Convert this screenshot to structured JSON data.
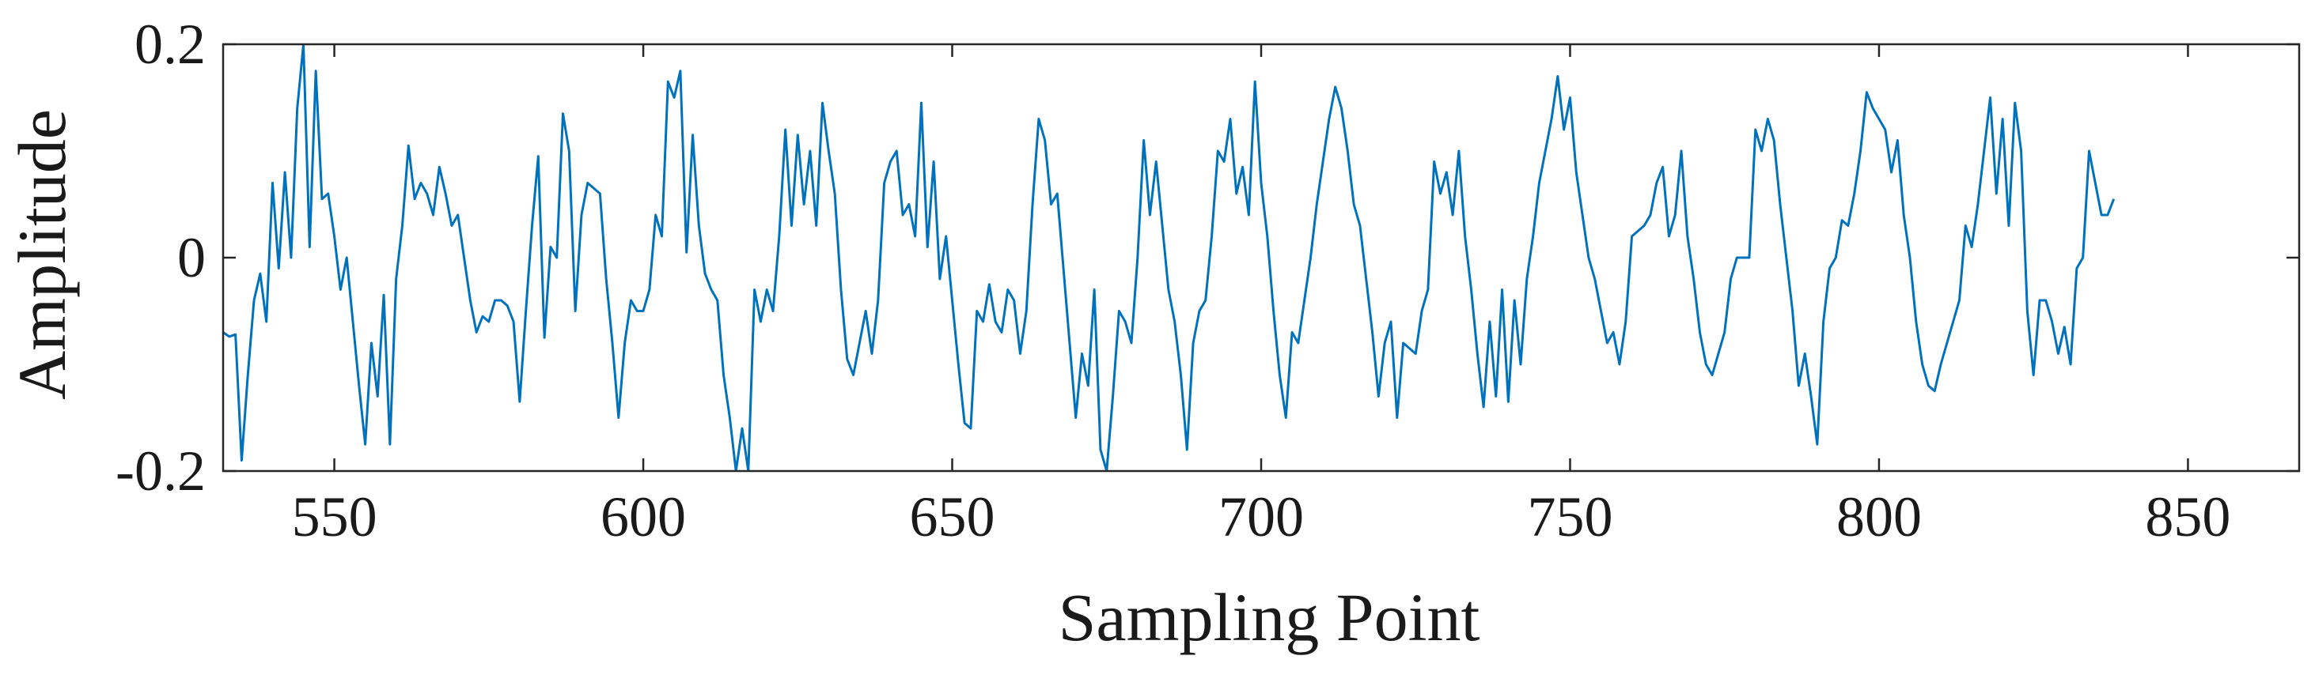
{
  "chart_data": {
    "type": "line",
    "title": "",
    "xlabel": "Sampling Point",
    "ylabel": "Amplitude",
    "xlim": [
      532,
      868
    ],
    "ylim": [
      -0.2,
      0.2
    ],
    "x_ticks": [
      550,
      600,
      650,
      700,
      750,
      800,
      850
    ],
    "y_ticks": [
      -0.2,
      0,
      0.2
    ],
    "x_tick_labels": [
      "550",
      "600",
      "650",
      "700",
      "750",
      "800",
      "850"
    ],
    "y_tick_labels": [
      "-0.2",
      "0",
      "0.2"
    ],
    "grid": false,
    "legend": "none",
    "series": [
      {
        "color": "#0072BD",
        "x_start": 532,
        "x_step": 1,
        "values": [
          -0.07,
          -0.074,
          -0.072,
          -0.19,
          -0.11,
          -0.04,
          -0.015,
          -0.06,
          0.07,
          -0.01,
          0.08,
          0.0,
          0.14,
          0.2,
          0.01,
          0.175,
          0.055,
          0.06,
          0.02,
          -0.03,
          0.0,
          -0.06,
          -0.12,
          -0.175,
          -0.08,
          -0.13,
          -0.035,
          -0.175,
          -0.02,
          0.03,
          0.105,
          0.055,
          0.07,
          0.06,
          0.04,
          0.085,
          0.06,
          0.03,
          0.04,
          0.0,
          -0.04,
          -0.07,
          -0.055,
          -0.06,
          -0.04,
          -0.04,
          -0.045,
          -0.06,
          -0.135,
          -0.05,
          0.03,
          0.095,
          -0.075,
          0.01,
          0.0,
          0.135,
          0.1,
          -0.05,
          0.04,
          0.07,
          0.065,
          0.06,
          -0.02,
          -0.08,
          -0.15,
          -0.08,
          -0.04,
          -0.05,
          -0.05,
          -0.03,
          0.04,
          0.02,
          0.165,
          0.15,
          0.175,
          0.005,
          0.115,
          0.03,
          -0.015,
          -0.03,
          -0.04,
          -0.11,
          -0.15,
          -0.2,
          -0.16,
          -0.2,
          -0.03,
          -0.06,
          -0.03,
          -0.05,
          0.02,
          0.12,
          0.03,
          0.115,
          0.05,
          0.1,
          0.03,
          0.145,
          0.1,
          0.06,
          -0.03,
          -0.095,
          -0.11,
          -0.08,
          -0.05,
          -0.09,
          -0.04,
          0.07,
          0.09,
          0.1,
          0.04,
          0.05,
          0.02,
          0.145,
          0.01,
          0.09,
          -0.02,
          0.02,
          -0.04,
          -0.1,
          -0.155,
          -0.16,
          -0.05,
          -0.06,
          -0.025,
          -0.06,
          -0.07,
          -0.03,
          -0.04,
          -0.09,
          -0.05,
          0.05,
          0.13,
          0.11,
          0.05,
          0.06,
          -0.01,
          -0.08,
          -0.15,
          -0.09,
          -0.12,
          -0.03,
          -0.18,
          -0.2,
          -0.13,
          -0.05,
          -0.06,
          -0.08,
          0.0,
          0.11,
          0.04,
          0.09,
          0.03,
          -0.03,
          -0.06,
          -0.11,
          -0.18,
          -0.08,
          -0.05,
          -0.04,
          0.02,
          0.1,
          0.09,
          0.13,
          0.06,
          0.085,
          0.04,
          0.165,
          0.07,
          0.02,
          -0.05,
          -0.11,
          -0.15,
          -0.07,
          -0.08,
          -0.04,
          0.0,
          0.05,
          0.09,
          0.13,
          0.16,
          0.14,
          0.1,
          0.05,
          0.03,
          -0.02,
          -0.07,
          -0.13,
          -0.08,
          -0.06,
          -0.15,
          -0.08,
          -0.085,
          -0.09,
          -0.05,
          -0.03,
          0.09,
          0.06,
          0.08,
          0.04,
          0.1,
          0.02,
          -0.03,
          -0.09,
          -0.14,
          -0.06,
          -0.13,
          -0.03,
          -0.135,
          -0.04,
          -0.1,
          -0.02,
          0.02,
          0.07,
          0.1,
          0.13,
          0.17,
          0.12,
          0.15,
          0.08,
          0.04,
          0.0,
          -0.02,
          -0.05,
          -0.08,
          -0.07,
          -0.1,
          -0.06,
          0.02,
          0.025,
          0.03,
          0.04,
          0.07,
          0.085,
          0.02,
          0.04,
          0.1,
          0.02,
          -0.02,
          -0.07,
          -0.1,
          -0.11,
          -0.09,
          -0.07,
          -0.02,
          0.0,
          0.0,
          0.0,
          0.12,
          0.1,
          0.13,
          0.11,
          0.05,
          0.0,
          -0.05,
          -0.12,
          -0.09,
          -0.13,
          -0.175,
          -0.06,
          -0.01,
          0.0,
          0.035,
          0.03,
          0.06,
          0.1,
          0.155,
          0.14,
          0.13,
          0.12,
          0.08,
          0.11,
          0.04,
          0.0,
          -0.06,
          -0.1,
          -0.12,
          -0.125,
          -0.1,
          -0.08,
          -0.06,
          -0.04,
          0.03,
          0.01,
          0.05,
          0.1,
          0.15,
          0.06,
          0.13,
          0.03,
          0.145,
          0.1,
          -0.05,
          -0.11,
          -0.04,
          -0.04,
          -0.06,
          -0.09,
          -0.065,
          -0.1,
          -0.01,
          0.0,
          0.1,
          0.07,
          0.04,
          0.04,
          0.055
        ]
      }
    ]
  }
}
